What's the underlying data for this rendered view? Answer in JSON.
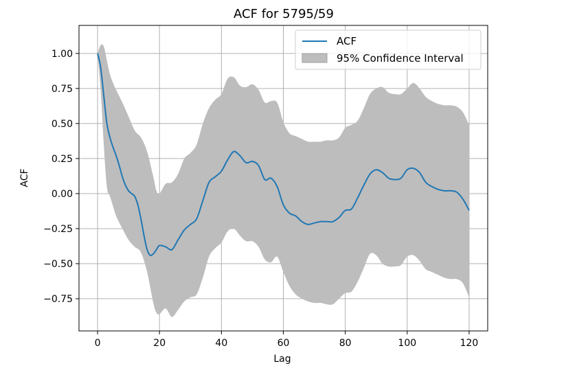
{
  "chart_data": {
    "type": "line",
    "title": "ACF for 5795/59",
    "xlabel": "Lag",
    "ylabel": "ACF",
    "xlim": [
      -6,
      126
    ],
    "ylim": [
      -0.98,
      1.2
    ],
    "xticks": [
      0,
      20,
      40,
      60,
      80,
      100,
      120
    ],
    "xtick_labels": [
      "0",
      "20",
      "40",
      "60",
      "80",
      "100",
      "120"
    ],
    "yticks": [
      1.0,
      0.75,
      0.5,
      0.25,
      0.0,
      -0.25,
      -0.5,
      -0.75
    ],
    "ytick_labels": [
      "1.00",
      "0.75",
      "0.50",
      "0.25",
      "0.00",
      "−0.25",
      "−0.50",
      "−0.75"
    ],
    "grid": true,
    "legend_position": "top-right",
    "colors": {
      "acf": "#1f77b4",
      "ci": "#bdbdbd"
    },
    "series": [
      {
        "name": "ACF",
        "x": [
          0,
          1,
          2,
          3,
          4,
          5,
          6,
          7,
          8,
          9,
          10,
          11,
          12,
          13,
          14,
          15,
          16,
          17,
          18,
          19,
          20,
          22,
          24,
          26,
          28,
          30,
          32,
          34,
          36,
          38,
          40,
          42,
          44,
          46,
          48,
          50,
          52,
          54,
          56,
          58,
          60,
          62,
          64,
          66,
          68,
          70,
          72,
          74,
          76,
          78,
          80,
          82,
          84,
          86,
          88,
          90,
          92,
          94,
          96,
          98,
          100,
          102,
          104,
          106,
          108,
          110,
          112,
          114,
          116,
          118,
          120
        ],
        "values": [
          1.0,
          0.9,
          0.7,
          0.5,
          0.4,
          0.33,
          0.27,
          0.2,
          0.12,
          0.06,
          0.02,
          0.0,
          -0.02,
          -0.08,
          -0.18,
          -0.3,
          -0.4,
          -0.44,
          -0.43,
          -0.4,
          -0.37,
          -0.38,
          -0.4,
          -0.33,
          -0.26,
          -0.22,
          -0.18,
          -0.05,
          0.08,
          0.12,
          0.16,
          0.24,
          0.3,
          0.27,
          0.22,
          0.23,
          0.2,
          0.1,
          0.11,
          0.05,
          -0.08,
          -0.14,
          -0.16,
          -0.2,
          -0.22,
          -0.21,
          -0.2,
          -0.2,
          -0.2,
          -0.17,
          -0.12,
          -0.11,
          -0.03,
          0.06,
          0.14,
          0.17,
          0.15,
          0.11,
          0.1,
          0.11,
          0.17,
          0.18,
          0.15,
          0.08,
          0.05,
          0.03,
          0.02,
          0.02,
          0.01,
          -0.04,
          -0.12
        ]
      },
      {
        "name": "95% Confidence Interval",
        "x": [
          0,
          1,
          2,
          3,
          4,
          5,
          6,
          8,
          10,
          12,
          14,
          16,
          18,
          19,
          20,
          22,
          24,
          26,
          28,
          30,
          32,
          34,
          36,
          38,
          40,
          42,
          44,
          46,
          48,
          50,
          52,
          54,
          56,
          58,
          60,
          62,
          64,
          66,
          68,
          70,
          72,
          74,
          76,
          78,
          80,
          82,
          84,
          86,
          88,
          90,
          92,
          94,
          96,
          98,
          100,
          102,
          104,
          106,
          108,
          110,
          112,
          114,
          116,
          118,
          120
        ],
        "upper": [
          1.0,
          1.06,
          1.05,
          0.95,
          0.85,
          0.79,
          0.74,
          0.65,
          0.55,
          0.45,
          0.4,
          0.3,
          0.12,
          0.02,
          0.0,
          0.07,
          0.08,
          0.14,
          0.25,
          0.29,
          0.35,
          0.5,
          0.61,
          0.67,
          0.71,
          0.82,
          0.83,
          0.77,
          0.76,
          0.78,
          0.74,
          0.65,
          0.66,
          0.65,
          0.51,
          0.43,
          0.41,
          0.39,
          0.37,
          0.37,
          0.37,
          0.38,
          0.38,
          0.4,
          0.47,
          0.49,
          0.52,
          0.61,
          0.71,
          0.75,
          0.76,
          0.72,
          0.71,
          0.71,
          0.75,
          0.79,
          0.75,
          0.69,
          0.66,
          0.64,
          0.63,
          0.63,
          0.62,
          0.58,
          0.49
        ],
        "lower": [
          1.0,
          0.74,
          0.35,
          0.05,
          -0.02,
          -0.09,
          -0.16,
          -0.25,
          -0.33,
          -0.38,
          -0.42,
          -0.56,
          -0.78,
          -0.85,
          -0.86,
          -0.82,
          -0.88,
          -0.83,
          -0.77,
          -0.74,
          -0.72,
          -0.6,
          -0.45,
          -0.39,
          -0.35,
          -0.27,
          -0.25,
          -0.3,
          -0.34,
          -0.34,
          -0.38,
          -0.47,
          -0.49,
          -0.45,
          -0.56,
          -0.66,
          -0.72,
          -0.75,
          -0.77,
          -0.78,
          -0.78,
          -0.79,
          -0.79,
          -0.75,
          -0.71,
          -0.7,
          -0.63,
          -0.53,
          -0.43,
          -0.44,
          -0.5,
          -0.52,
          -0.52,
          -0.51,
          -0.45,
          -0.44,
          -0.48,
          -0.54,
          -0.56,
          -0.58,
          -0.6,
          -0.61,
          -0.61,
          -0.64,
          -0.74
        ]
      }
    ]
  }
}
